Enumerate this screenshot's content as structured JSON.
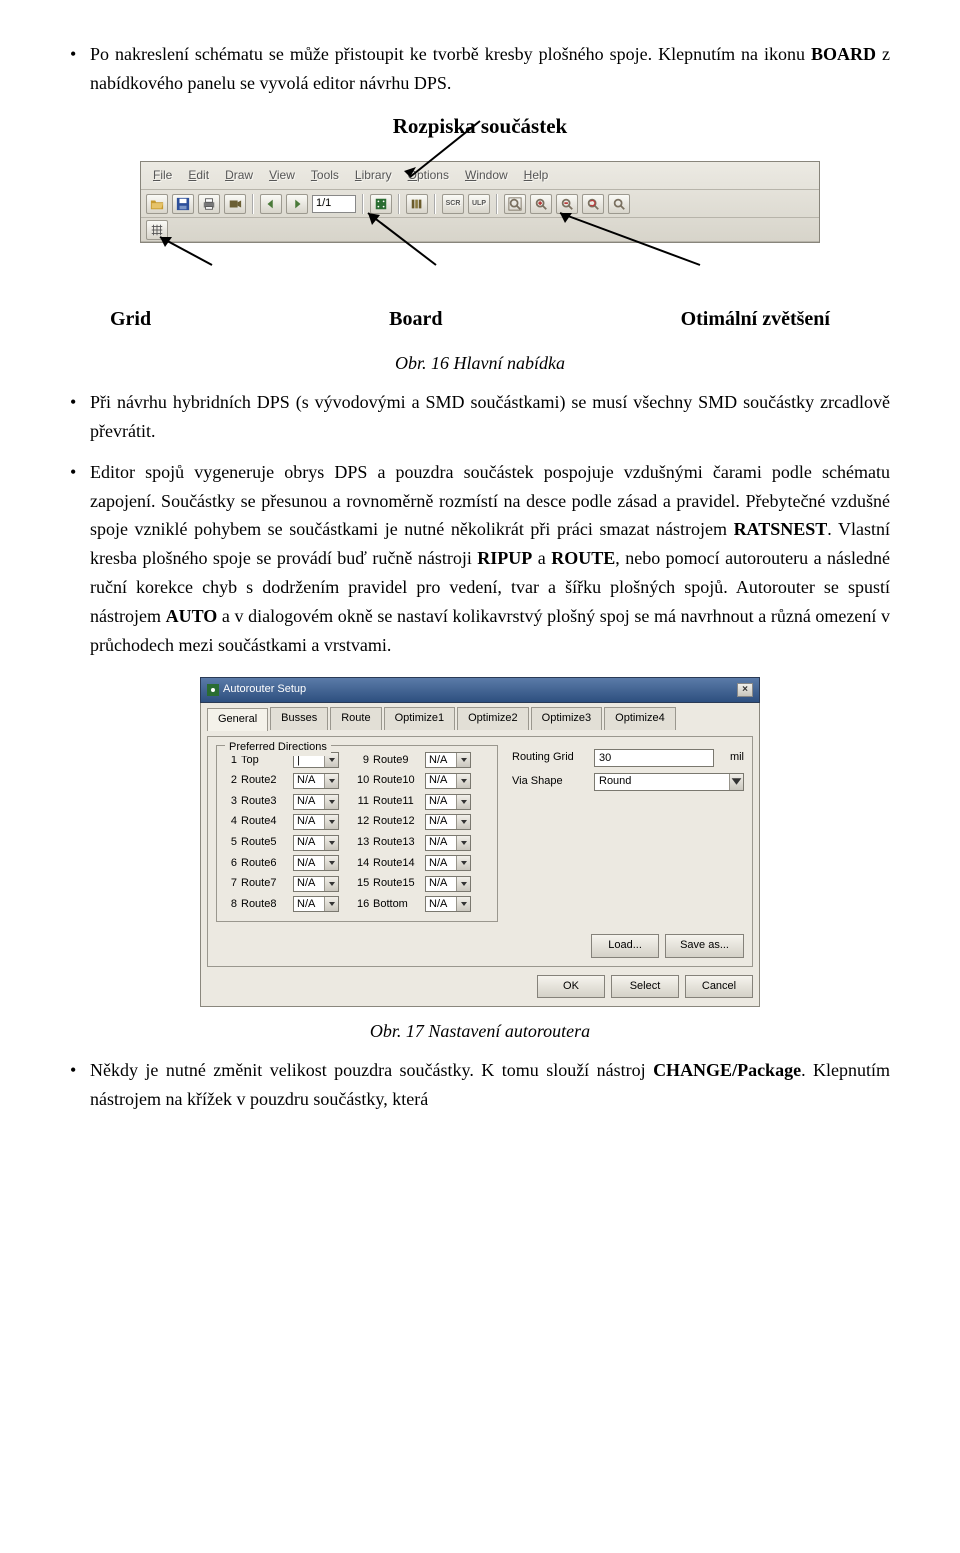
{
  "para1_a": "Po nakreslení schématu se může přistoupit ke tvorbě kresby plošného spoje. Klepnutím na ikonu ",
  "para1_b": " z nabídkového panelu se vyvolá editor návrhu DPS.",
  "board_bold": "BOARD",
  "annotation_top": "Rozpiska součástek",
  "annotation_row": {
    "grid": "Grid",
    "board": "Board",
    "zoom": "Otimální zvětšení"
  },
  "toolbar": {
    "menus": [
      "File",
      "Edit",
      "Draw",
      "View",
      "Tools",
      "Library",
      "Options",
      "Window",
      "Help"
    ],
    "page_value": "1/1",
    "colors": {
      "bg_top": "#eceae3",
      "bg_bottom": "#d7d4ca",
      "border": "#88857b",
      "open_icon": "#c79a2f",
      "save_icon": "#2d4f9a",
      "print_icon": "#555",
      "cam_icon": "#6b5f34",
      "board_icon": "#2a6d32",
      "lib_icon": "#6a5b2b",
      "scr_icon": "#3a3a3a",
      "ulp_icon": "#3a3a3a",
      "zoom_fit": "#7a7060",
      "zoom_in_plus": "#b83c3c",
      "zoom_out_minus": "#b83c3c",
      "zoom_glass": "#7a7060",
      "grid_icon": "#555"
    }
  },
  "caption1": "Obr. 16 Hlavní nabídka",
  "para2": "Při návrhu hybridních DPS (s vývodovými a SMD součástkami) se musí všechny SMD součástky zrcadlově převrátit.",
  "para3_a": "Editor spojů vygeneruje obrys DPS a pouzdra součástek pospojuje vzdušnými čarami podle schématu zapojení. Součástky se přesunou a rovnoměrně rozmístí na desce podle zásad a pravidel. Přebytečné vzdušné spoje vzniklé pohybem se součástkami je nutné několikrát při práci smazat nástrojem ",
  "ratsnest": "RATSNEST",
  "para3_b": ". Vlastní kresba plošného spoje se provádí buď ručně nástroji ",
  "ripup": "RIPUP",
  "para3_c": " a ",
  "route": "ROUTE",
  "para3_d": ", nebo pomocí autorouteru a následné ruční korekce chyb s dodržením pravidel pro vedení, tvar a šířku plošných spojů. Autorouter se spustí nástrojem ",
  "auto": "AUTO",
  "para3_e": " a v dialogovém okně se nastaví kolikavrstvý plošný spoj se má navrhnout a různá omezení v průchodech mezi součástkami a vrstvami.",
  "dialog": {
    "title": "Autorouter Setup",
    "tabs": [
      "General",
      "Busses",
      "Route",
      "Optimize1",
      "Optimize2",
      "Optimize3",
      "Optimize4"
    ],
    "active_tab": 0,
    "pref_legend": "Preferred Directions",
    "rows_left": [
      {
        "idx": "1",
        "label": "Top",
        "value": "|"
      },
      {
        "idx": "2",
        "label": "Route2",
        "value": "N/A"
      },
      {
        "idx": "3",
        "label": "Route3",
        "value": "N/A"
      },
      {
        "idx": "4",
        "label": "Route4",
        "value": "N/A"
      },
      {
        "idx": "5",
        "label": "Route5",
        "value": "N/A"
      },
      {
        "idx": "6",
        "label": "Route6",
        "value": "N/A"
      },
      {
        "idx": "7",
        "label": "Route7",
        "value": "N/A"
      },
      {
        "idx": "8",
        "label": "Route8",
        "value": "N/A"
      }
    ],
    "rows_right": [
      {
        "idx": "9",
        "label": "Route9",
        "value": "N/A"
      },
      {
        "idx": "10",
        "label": "Route10",
        "value": "N/A"
      },
      {
        "idx": "11",
        "label": "Route11",
        "value": "N/A"
      },
      {
        "idx": "12",
        "label": "Route12",
        "value": "N/A"
      },
      {
        "idx": "13",
        "label": "Route13",
        "value": "N/A"
      },
      {
        "idx": "14",
        "label": "Route14",
        "value": "N/A"
      },
      {
        "idx": "15",
        "label": "Route15",
        "value": "N/A"
      },
      {
        "idx": "16",
        "label": "Bottom",
        "value": "N/A"
      }
    ],
    "routing_grid_label": "Routing Grid",
    "routing_grid_value": "30",
    "routing_grid_unit": "mil",
    "via_shape_label": "Via Shape",
    "via_shape_value": "Round",
    "load_btn": "Load...",
    "save_btn": "Save as...",
    "ok_btn": "OK",
    "select_btn": "Select",
    "cancel_btn": "Cancel",
    "colors": {
      "title_grad_top": "#5b7ba8",
      "title_grad_bottom": "#2d4f7f",
      "body_bg": "#ece9e1",
      "border": "#8a877d"
    }
  },
  "caption2": "Obr. 17 Nastavení autoroutera",
  "para4_a": "Někdy je nutné změnit velikost pouzdra součástky. K tomu slouží nástroj ",
  "change_pkg": "CHANGE/Package",
  "para4_b": ". Klepnutím nástrojem na křížek v pouzdru součástky, která"
}
